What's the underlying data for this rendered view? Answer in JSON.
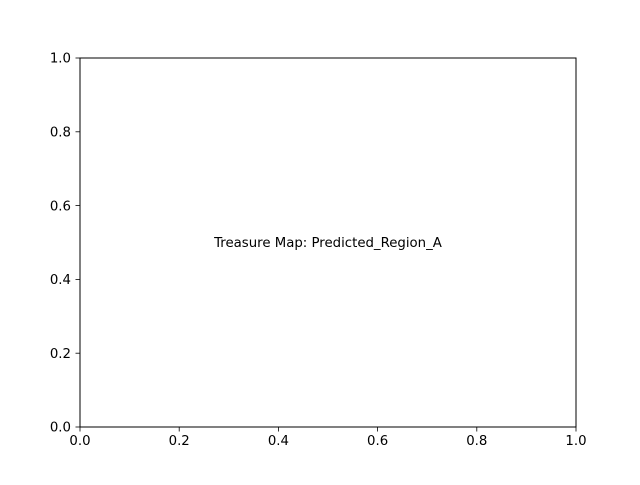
{
  "chart_data": {
    "type": "scatter",
    "title": "",
    "xlabel": "",
    "ylabel": "",
    "xlim": [
      0.0,
      1.0
    ],
    "ylim": [
      0.0,
      1.0
    ],
    "xticks": [
      "0.0",
      "0.2",
      "0.4",
      "0.6",
      "0.8",
      "1.0"
    ],
    "yticks": [
      "0.0",
      "0.2",
      "0.4",
      "0.6",
      "0.8",
      "1.0"
    ],
    "grid": false,
    "series": [],
    "annotations": [
      {
        "text": "Treasure Map: Predicted_Region_A",
        "x": 0.5,
        "y": 0.5
      }
    ]
  }
}
